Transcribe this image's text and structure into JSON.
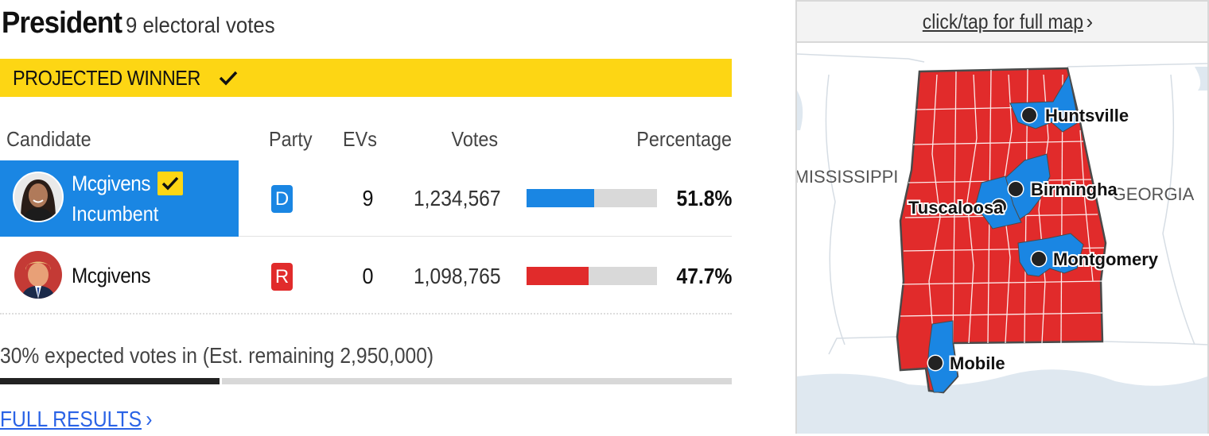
{
  "race": {
    "title": "President",
    "electoral_votes": "9 electoral votes",
    "banner": "PROJECTED WINNER"
  },
  "columns": {
    "candidate": "Candidate",
    "party": "Party",
    "evs": "EVs",
    "votes": "Votes",
    "percentage": "Percentage"
  },
  "candidates": [
    {
      "name": "Mcgivens",
      "subtitle": "Incumbent",
      "winner": true,
      "party": "D",
      "evs": "9",
      "votes": "1,234,567",
      "percentage": "51.8%",
      "share": 0.518,
      "color": "#1a86e3"
    },
    {
      "name": "Mcgivens",
      "subtitle": "",
      "winner": false,
      "party": "R",
      "evs": "0",
      "votes": "1,098,765",
      "percentage": "47.7%",
      "share": 0.477,
      "color": "#e12b2b"
    }
  ],
  "reporting": {
    "expected_text": "30% expected votes in (Est. remaining 2,950,000)",
    "expected_fraction": 0.3
  },
  "links": {
    "full_results": "FULL RESULTS",
    "full_map": "click/tap for full map"
  },
  "map": {
    "states": [
      "MISSISSIPPI",
      "GEORGIA"
    ],
    "cities": [
      "Huntsville",
      "Birmingha",
      "Tuscaloosa",
      "Montgomery",
      "Mobile"
    ]
  },
  "colors": {
    "democrat": "#1a86e3",
    "republican": "#e12b2b",
    "banner": "#fdd614",
    "link": "#2a63e6"
  }
}
